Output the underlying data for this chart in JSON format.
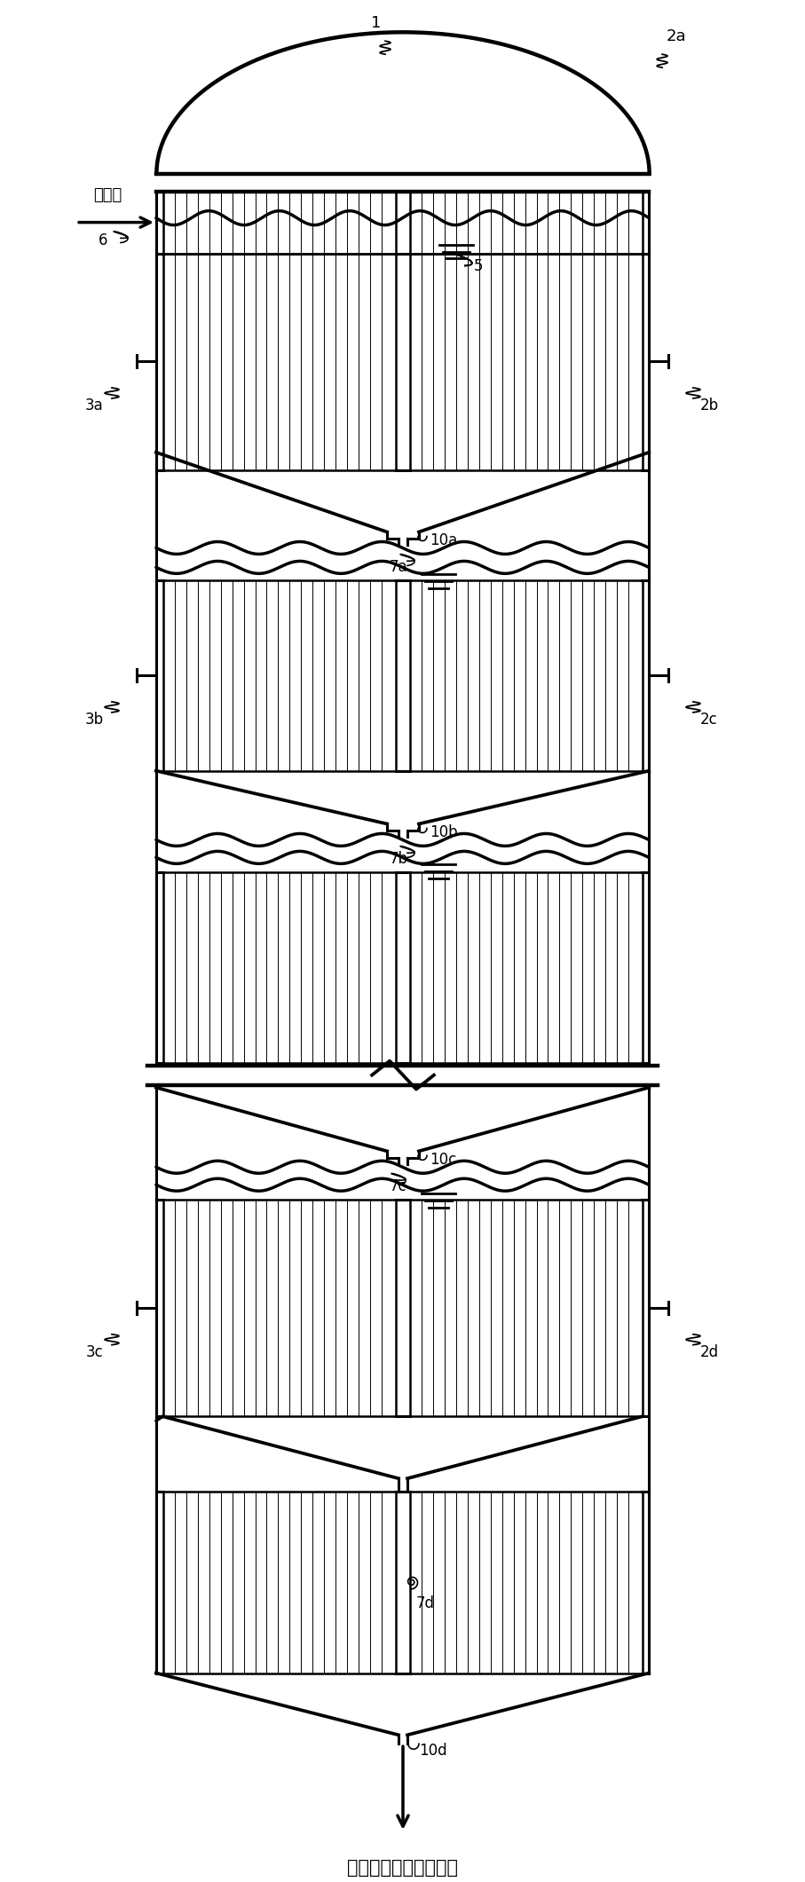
{
  "bg_color": "#ffffff",
  "line_color": "#000000",
  "lw": 2.2,
  "fig_width": 9.07,
  "fig_height": 21.21,
  "labels": {
    "salt_solution": "盐溶液",
    "outlet_label": "通入第二阶段反应单元",
    "top_vessel": "1",
    "pipe_2a": "2a",
    "pipe_2b": "2b",
    "pipe_2c": "2c",
    "pipe_2d": "2d",
    "pipe_3a": "3a",
    "pipe_3b": "3b",
    "pipe_3c": "3c",
    "label_5": "5",
    "label_6": "6",
    "label_7a": "7a",
    "label_7b": "7b",
    "label_7c": "7c",
    "label_7d": "7d",
    "label_10a": "10a",
    "label_10b": "10b",
    "label_10c": "10c",
    "label_10d": "10d"
  }
}
